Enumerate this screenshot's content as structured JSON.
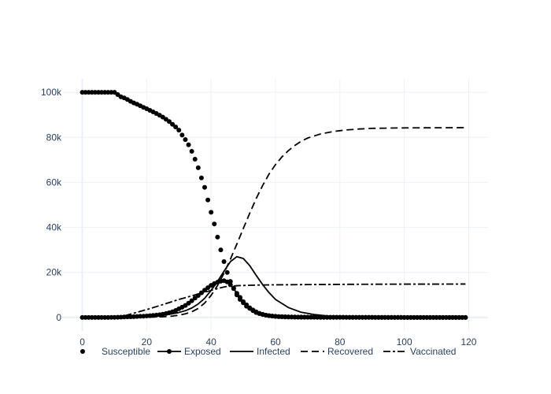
{
  "chart_data": {
    "type": "line",
    "title": "",
    "xlabel": "",
    "ylabel": "",
    "xlim": [
      -6,
      126
    ],
    "ylim": [
      -6000,
      106000
    ],
    "xticks": [
      0,
      20,
      40,
      60,
      80,
      100,
      120
    ],
    "xtick_labels": [
      "0",
      "20",
      "40",
      "60",
      "80",
      "100",
      "120"
    ],
    "yticks": [
      0,
      20000,
      40000,
      60000,
      80000,
      100000
    ],
    "ytick_labels": [
      "0",
      "20k",
      "40k",
      "60k",
      "80k",
      "100k"
    ],
    "grid": true,
    "legend_position": "bottom",
    "colors": {
      "line": "#000000",
      "grid": "#ebf0f8",
      "zeroline": "#ebf0f8",
      "text": "#2a3f5f"
    },
    "series": [
      {
        "name": "Susceptible",
        "mode": "markers",
        "dash": "solid",
        "x": [
          0,
          1,
          2,
          3,
          4,
          5,
          6,
          7,
          8,
          9,
          10,
          11,
          12,
          13,
          14,
          15,
          16,
          17,
          18,
          19,
          20,
          21,
          22,
          23,
          24,
          25,
          26,
          27,
          28,
          29,
          30,
          31,
          32,
          33,
          34,
          35,
          36,
          37,
          38,
          39,
          40,
          41,
          42,
          43,
          44,
          45,
          46,
          47,
          48,
          49,
          50,
          51,
          52,
          53,
          54,
          55,
          56,
          57,
          58,
          59,
          60,
          61,
          62,
          63,
          64,
          65,
          66,
          67,
          68,
          69,
          70,
          71,
          72,
          73,
          74,
          75,
          76,
          77,
          78,
          79,
          80,
          81,
          82,
          83,
          84,
          85,
          86,
          87,
          88,
          89,
          90,
          91,
          92,
          93,
          94,
          95,
          96,
          97,
          98,
          99,
          100,
          101,
          102,
          103,
          104,
          105,
          106,
          107,
          108,
          109,
          110,
          111,
          112,
          113,
          114,
          115,
          116,
          117,
          118,
          119
        ],
        "y": [
          100000,
          100000,
          100000,
          100000,
          100000,
          100000,
          100000,
          100000,
          100000,
          100000,
          100000,
          99000,
          98000,
          97500,
          96800,
          96000,
          95300,
          94700,
          94000,
          93300,
          92700,
          92000,
          91300,
          90600,
          89800,
          89000,
          88000,
          87000,
          85800,
          84600,
          83200,
          81000,
          79000,
          76700,
          73800,
          70300,
          66500,
          62000,
          57800,
          52200,
          46700,
          41500,
          35700,
          30000,
          24800,
          20000,
          16000,
          13000,
          10000,
          8000,
          6500,
          5000,
          4000,
          3000,
          2200,
          1700,
          1300,
          1000,
          800,
          600,
          500,
          400,
          350,
          300,
          250,
          220,
          200,
          180,
          160,
          150,
          140,
          130,
          120,
          110,
          100,
          95,
          90,
          85,
          80,
          75,
          70,
          65,
          60,
          55,
          50,
          45,
          40,
          38,
          36,
          34,
          32,
          30,
          28,
          26,
          24,
          22,
          20,
          18,
          16,
          15,
          14,
          13,
          12,
          11,
          10,
          10,
          10,
          10,
          10,
          10,
          10,
          10,
          10,
          10,
          10,
          10,
          10,
          10,
          10,
          10
        ]
      },
      {
        "name": "Exposed",
        "mode": "lines+markers",
        "dash": "solid",
        "x": [
          0,
          1,
          2,
          3,
          4,
          5,
          6,
          7,
          8,
          9,
          10,
          11,
          12,
          13,
          14,
          15,
          16,
          17,
          18,
          19,
          20,
          21,
          22,
          23,
          24,
          25,
          26,
          27,
          28,
          29,
          30,
          31,
          32,
          33,
          34,
          35,
          36,
          37,
          38,
          39,
          40,
          41,
          42,
          43,
          44,
          45,
          46,
          47,
          48,
          49,
          50,
          51,
          52,
          53,
          54,
          55,
          56,
          57,
          58,
          59,
          60,
          61,
          62,
          63,
          64,
          65,
          66,
          67,
          68,
          69,
          70,
          71,
          72,
          73,
          74,
          75,
          76,
          77,
          78,
          79,
          80,
          81,
          82,
          83,
          84,
          85,
          86,
          87,
          88,
          89,
          90,
          91,
          92,
          93,
          94,
          95,
          96,
          97,
          98,
          99,
          100,
          101,
          102,
          103,
          104,
          105,
          106,
          107,
          108,
          109,
          110,
          111,
          112,
          113,
          114,
          115,
          116,
          117,
          118,
          119
        ],
        "y": [
          0,
          0,
          0,
          0,
          0,
          0,
          0,
          0,
          0,
          20,
          50,
          90,
          140,
          190,
          240,
          300,
          360,
          430,
          500,
          580,
          670,
          770,
          900,
          1040,
          1230,
          1450,
          1750,
          2100,
          2550,
          3100,
          3850,
          4550,
          5350,
          6350,
          7450,
          8600,
          9750,
          10950,
          12100,
          13200,
          14250,
          15050,
          15650,
          16100,
          16300,
          15800,
          14500,
          12800,
          10700,
          8900,
          7000,
          5600,
          4300,
          3300,
          2500,
          1850,
          1400,
          1050,
          800,
          600,
          450,
          350,
          280,
          220,
          180,
          150,
          130,
          110,
          100,
          90,
          80,
          72,
          65,
          60,
          55,
          50,
          46,
          42,
          38,
          35,
          32,
          29,
          27,
          25,
          23,
          21,
          19,
          18,
          17,
          16,
          15,
          14,
          13,
          12,
          12,
          11,
          11,
          10,
          10,
          10,
          10,
          10,
          10,
          10,
          10,
          10,
          10,
          10,
          10,
          10,
          10,
          10,
          10,
          10,
          10,
          10,
          10,
          10,
          10,
          10
        ]
      },
      {
        "name": "Infected",
        "mode": "lines",
        "dash": "solid",
        "x": [
          0,
          10,
          15,
          20,
          25,
          28,
          30,
          32,
          34,
          36,
          38,
          40,
          42,
          44,
          46,
          48,
          50,
          52,
          54,
          56,
          58,
          60,
          64,
          68,
          72,
          76,
          80,
          84,
          90,
          100,
          110,
          119
        ],
        "y": [
          0,
          0,
          200,
          500,
          1000,
          1600,
          2200,
          3000,
          4200,
          6000,
          8500,
          12000,
          16000,
          20500,
          24800,
          27000,
          26200,
          23000,
          18700,
          14600,
          11000,
          8000,
          4400,
          2300,
          1300,
          700,
          400,
          250,
          150,
          80,
          40,
          20
        ]
      },
      {
        "name": "Recovered",
        "mode": "lines",
        "dash": "dash",
        "x": [
          0,
          10,
          20,
          25,
          28,
          30,
          32,
          34,
          36,
          38,
          40,
          42,
          44,
          46,
          48,
          50,
          52,
          54,
          56,
          58,
          60,
          62,
          64,
          66,
          68,
          70,
          74,
          78,
          82,
          86,
          90,
          100,
          110,
          119
        ],
        "y": [
          0,
          0,
          100,
          300,
          600,
          1000,
          1600,
          2500,
          4000,
          6400,
          9800,
          14200,
          19600,
          25900,
          32600,
          39500,
          46300,
          52800,
          58600,
          63700,
          67900,
          71300,
          74100,
          76400,
          78300,
          79700,
          81500,
          82600,
          83300,
          83700,
          84000,
          84200,
          84250,
          84300
        ]
      },
      {
        "name": "Vaccinated",
        "mode": "lines",
        "dash": "dashdot",
        "x": [
          0,
          10,
          12,
          15,
          20,
          25,
          30,
          35,
          40,
          43,
          45,
          48,
          50,
          55,
          60,
          70,
          80,
          90,
          100,
          110,
          119
        ],
        "y": [
          0,
          0,
          300,
          1500,
          3500,
          5700,
          8000,
          10000,
          12000,
          13200,
          13800,
          14100,
          14200,
          14400,
          14500,
          14600,
          14700,
          14750,
          14800,
          14800,
          14850
        ]
      }
    ]
  }
}
